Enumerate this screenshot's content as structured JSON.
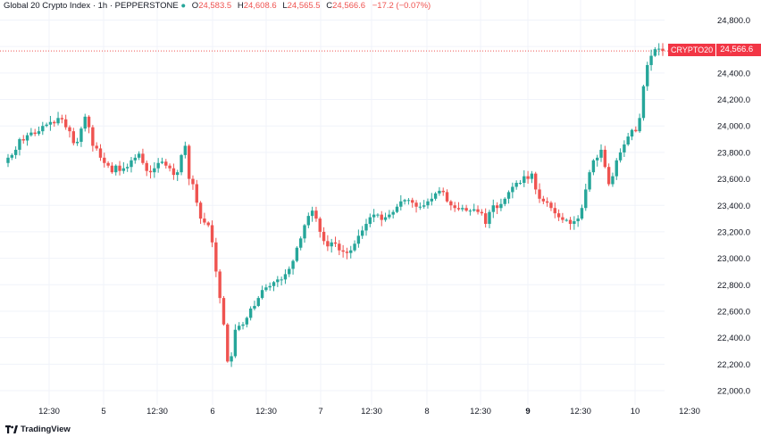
{
  "legend": {
    "symbol": "Global 20 Crypto Index",
    "interval": "1h",
    "exchange": "PEPPERSTONE",
    "open_label": "O",
    "open": "24,583.5",
    "high_label": "H",
    "high": "24,608.6",
    "low_label": "L",
    "low": "24,565.5",
    "close_label": "C",
    "close": "24,566.6",
    "change": "−17.2 (−0.07%)"
  },
  "badge": {
    "symbol": "CRYPTO20",
    "price": "24,566.6"
  },
  "branding": "TradingView",
  "colors": {
    "up": "#26a69a",
    "down": "#ef5350",
    "badge": "#f23645",
    "grid": "#f0f3fa"
  },
  "chart_data": {
    "type": "candlestick",
    "title": "Global 20 Crypto Index · 1h · PEPPERSTONE",
    "ylim": [
      21900,
      24900
    ],
    "y_ticks": [
      "24,800.0",
      "24,600.0",
      "24,400.0",
      "24,200.0",
      "24,000.0",
      "23,800.0",
      "23,600.0",
      "23,400.0",
      "23,200.0",
      "23,000.0",
      "22,800.0",
      "22,600.0",
      "22,400.0",
      "22,200.0",
      "22,000.0"
    ],
    "x_ticks": [
      "12:30",
      "5",
      "12:30",
      "6",
      "12:30",
      "7",
      "12:30",
      "8",
      "12:30",
      "9",
      "12:30",
      "10",
      "12:30"
    ],
    "bold_x_ticks": [
      "9"
    ],
    "last_price": 24566.6,
    "close_series": [
      23760,
      23780,
      23820,
      23900,
      23890,
      23930,
      23950,
      23940,
      23960,
      24000,
      24010,
      24030,
      24020,
      24060,
      24050,
      23990,
      23960,
      23870,
      23880,
      23980,
      24070,
      23990,
      23850,
      23830,
      23760,
      23720,
      23700,
      23650,
      23700,
      23660,
      23680,
      23690,
      23740,
      23760,
      23790,
      23720,
      23660,
      23650,
      23680,
      23720,
      23730,
      23700,
      23680,
      23630,
      23650,
      23780,
      23850,
      23600,
      23560,
      23420,
      23300,
      23270,
      23250,
      23120,
      22900,
      22700,
      22500,
      22220,
      22260,
      22460,
      22490,
      22500,
      22550,
      22620,
      22640,
      22700,
      22760,
      22780,
      22790,
      22820,
      22840,
      22840,
      22880,
      22920,
      22980,
      23080,
      23150,
      23250,
      23320,
      23360,
      23300,
      23200,
      23130,
      23090,
      23120,
      23110,
      23060,
      23050,
      23040,
      23060,
      23110,
      23170,
      23210,
      23260,
      23310,
      23330,
      23330,
      23290,
      23310,
      23330,
      23350,
      23390,
      23430,
      23440,
      23440,
      23420,
      23390,
      23390,
      23400,
      23430,
      23450,
      23490,
      23510,
      23500,
      23430,
      23400,
      23380,
      23370,
      23380,
      23360,
      23360,
      23370,
      23350,
      23340,
      23260,
      23350,
      23400,
      23380,
      23410,
      23450,
      23500,
      23540,
      23570,
      23570,
      23620,
      23600,
      23640,
      23520,
      23450,
      23430,
      23420,
      23380,
      23340,
      23310,
      23290,
      23290,
      23260,
      23280,
      23300,
      23380,
      23520,
      23650,
      23740,
      23760,
      23820,
      23690,
      23560,
      23620,
      23740,
      23800,
      23860,
      23920,
      23970,
      23960,
      24060,
      24300,
      24460,
      24530,
      24580,
      24583.5,
      24566.6
    ],
    "summary": {
      "start": 23760,
      "pre_drop_high": 24110,
      "low": 22180,
      "low_time": "6",
      "mid_recovery": 23510,
      "late_low": 23240,
      "end": 24566.6,
      "high": 24690
    }
  }
}
